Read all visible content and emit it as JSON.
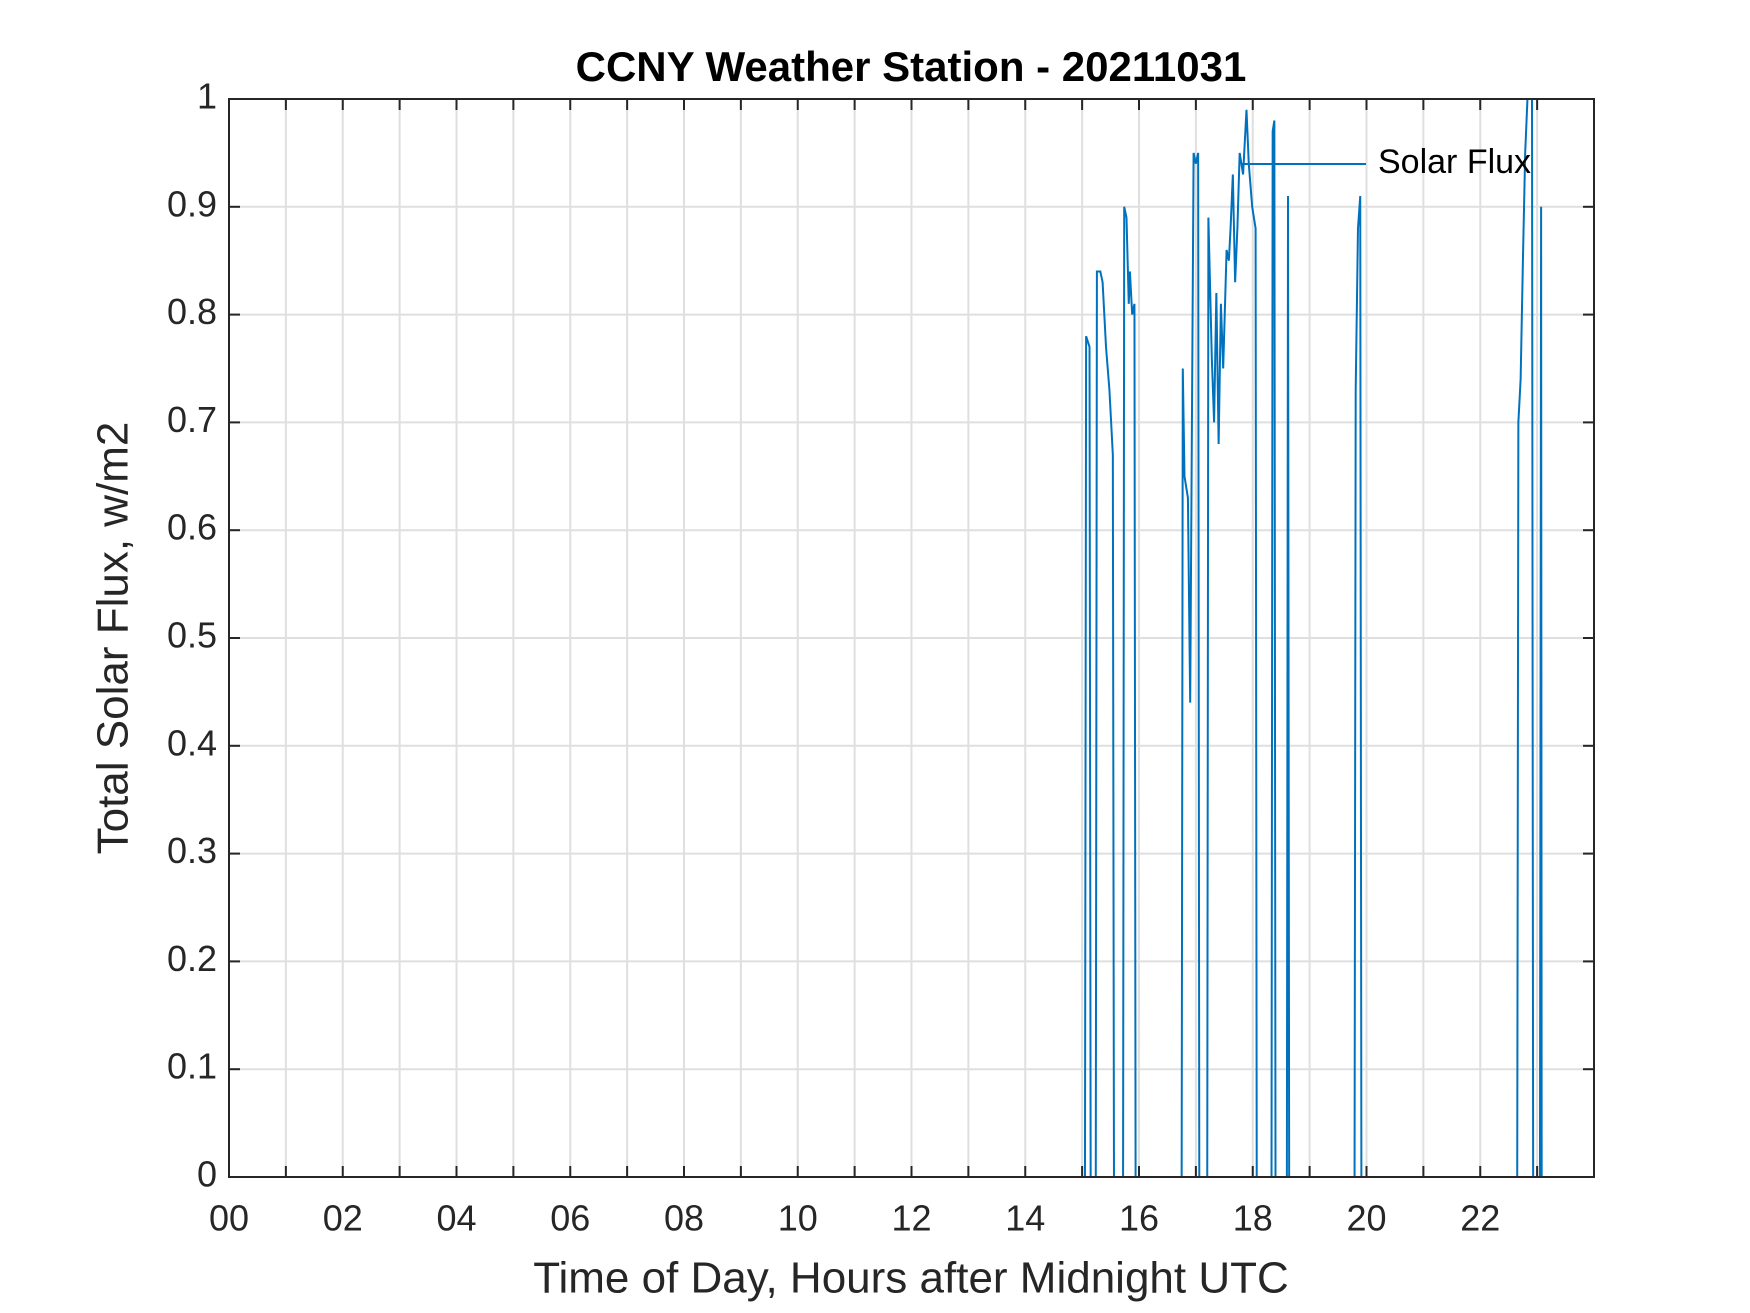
{
  "chart_data": {
    "type": "line",
    "title": "CCNY Weather Station - 20211031",
    "xlabel": "Time of Day, Hours after Midnight UTC",
    "ylabel": "Total Solar Flux, w/m2",
    "xlim": [
      0,
      24
    ],
    "ylim": [
      0,
      1
    ],
    "xticks": [
      {
        "value": 0,
        "label": "00"
      },
      {
        "value": 2,
        "label": "02"
      },
      {
        "value": 4,
        "label": "04"
      },
      {
        "value": 6,
        "label": "06"
      },
      {
        "value": 8,
        "label": "08"
      },
      {
        "value": 10,
        "label": "10"
      },
      {
        "value": 12,
        "label": "12"
      },
      {
        "value": 14,
        "label": "14"
      },
      {
        "value": 16,
        "label": "16"
      },
      {
        "value": 18,
        "label": "18"
      },
      {
        "value": 20,
        "label": "20"
      },
      {
        "value": 22,
        "label": "22"
      }
    ],
    "xminorticks": [
      1,
      3,
      5,
      7,
      9,
      11,
      13,
      15,
      17,
      19,
      21,
      23
    ],
    "yticks": [
      0,
      0.1,
      0.2,
      0.3,
      0.4,
      0.5,
      0.6,
      0.7,
      0.8,
      0.9,
      1
    ],
    "grid": true,
    "legend": "northeast",
    "series": [
      {
        "name": "Solar Flux",
        "color": "#0072bd",
        "x": [
          0,
          14.93,
          15.05,
          15.07,
          15.13,
          15.15,
          15.24,
          15.26,
          15.32,
          15.36,
          15.42,
          15.48,
          15.54,
          15.56,
          15.72,
          15.74,
          15.78,
          15.82,
          15.84,
          15.88,
          15.92,
          15.94,
          16.75,
          16.77,
          16.8,
          16.86,
          16.9,
          16.96,
          17.0,
          17.04,
          17.06,
          17.2,
          17.22,
          17.28,
          17.32,
          17.36,
          17.4,
          17.44,
          17.48,
          17.54,
          17.58,
          17.61,
          17.65,
          17.69,
          17.73,
          17.77,
          17.83,
          17.89,
          17.93,
          17.99,
          18.05,
          18.07,
          18.33,
          18.35,
          18.38,
          18.4,
          18.6,
          18.62,
          18.64,
          19.79,
          19.81,
          19.85,
          19.89,
          19.91,
          22.65,
          22.67,
          22.71,
          22.75,
          22.79,
          22.83,
          22.91,
          22.93,
          23.05,
          23.07,
          23.08
        ],
        "values": [
          0,
          0,
          0,
          0.78,
          0.77,
          0,
          0,
          0.84,
          0.84,
          0.83,
          0.77,
          0.73,
          0.67,
          0,
          0,
          0.9,
          0.89,
          0.81,
          0.84,
          0.8,
          0.81,
          0,
          0,
          0.75,
          0.65,
          0.63,
          0.44,
          0.95,
          0.94,
          0.95,
          0,
          0,
          0.89,
          0.76,
          0.7,
          0.82,
          0.68,
          0.81,
          0.75,
          0.86,
          0.85,
          0.88,
          0.93,
          0.83,
          0.88,
          0.95,
          0.93,
          0.99,
          0.94,
          0.9,
          0.88,
          0,
          0,
          0.97,
          0.98,
          0,
          0,
          0.91,
          0,
          0,
          0.73,
          0.88,
          0.91,
          0,
          0,
          0.7,
          0.74,
          0.85,
          0.95,
          1.0,
          1.0,
          0,
          0,
          0.9,
          0
        ]
      }
    ]
  }
}
